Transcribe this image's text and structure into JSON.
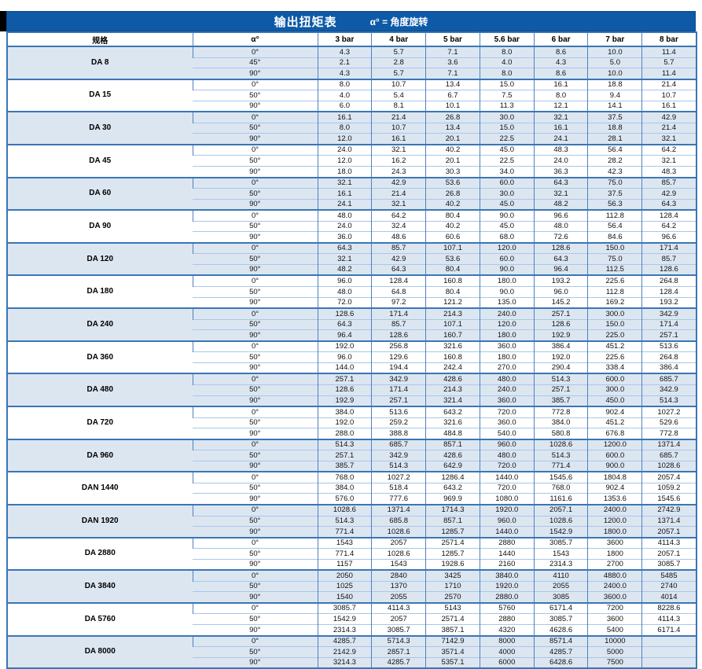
{
  "title": {
    "main": "输出扭矩表",
    "note": "α° =  角度旋转"
  },
  "colors": {
    "title_bar": "#0e5aa7",
    "border_thick": "#3a76b5",
    "border_thin": "#a9c7e7",
    "border_vertical": "#4f81bd",
    "group_shade": "#dce6f1"
  },
  "table": {
    "columns": [
      "规格",
      "α°",
      "3 bar",
      "4 bar",
      "5 bar",
      "5.6 bar",
      "6 bar",
      "7 bar",
      "8 bar"
    ],
    "groups": [
      {
        "spec": "DA 8",
        "rows": [
          {
            "angle": "0°",
            "values": [
              "4.3",
              "5.7",
              "7.1",
              "8.0",
              "8.6",
              "10.0",
              "11.4"
            ]
          },
          {
            "angle": "45°",
            "values": [
              "2.1",
              "2.8",
              "3.6",
              "4.0",
              "4.3",
              "5.0",
              "5.7"
            ]
          },
          {
            "angle": "90°",
            "values": [
              "4.3",
              "5.7",
              "7.1",
              "8.0",
              "8.6",
              "10.0",
              "11.4"
            ]
          }
        ]
      },
      {
        "spec": "DA 15",
        "rows": [
          {
            "angle": "0°",
            "values": [
              "8.0",
              "10.7",
              "13.4",
              "15.0",
              "16.1",
              "18.8",
              "21.4"
            ]
          },
          {
            "angle": "50°",
            "values": [
              "4.0",
              "5.4",
              "6.7",
              "7.5",
              "8.0",
              "9.4",
              "10.7"
            ]
          },
          {
            "angle": "90°",
            "values": [
              "6.0",
              "8.1",
              "10.1",
              "11.3",
              "12.1",
              "14.1",
              "16.1"
            ]
          }
        ]
      },
      {
        "spec": "DA 30",
        "rows": [
          {
            "angle": "0°",
            "values": [
              "16.1",
              "21.4",
              "26.8",
              "30.0",
              "32.1",
              "37.5",
              "42.9"
            ]
          },
          {
            "angle": "50°",
            "values": [
              "8.0",
              "10.7",
              "13.4",
              "15.0",
              "16.1",
              "18.8",
              "21.4"
            ]
          },
          {
            "angle": "90°",
            "values": [
              "12.0",
              "16.1",
              "20.1",
              "22.5",
              "24.1",
              "28.1",
              "32.1"
            ]
          }
        ]
      },
      {
        "spec": "DA 45",
        "rows": [
          {
            "angle": "0°",
            "values": [
              "24.0",
              "32.1",
              "40.2",
              "45.0",
              "48.3",
              "56.4",
              "64.2"
            ]
          },
          {
            "angle": "50°",
            "values": [
              "12.0",
              "16.2",
              "20.1",
              "22.5",
              "24.0",
              "28.2",
              "32.1"
            ]
          },
          {
            "angle": "90°",
            "values": [
              "18.0",
              "24.3",
              "30.3",
              "34.0",
              "36.3",
              "42.3",
              "48.3"
            ]
          }
        ]
      },
      {
        "spec": "DA 60",
        "rows": [
          {
            "angle": "0°",
            "values": [
              "32.1",
              "42.9",
              "53.6",
              "60.0",
              "64.3",
              "75.0",
              "85.7"
            ]
          },
          {
            "angle": "50°",
            "values": [
              "16.1",
              "21.4",
              "26.8",
              "30.0",
              "32.1",
              "37.5",
              "42.9"
            ]
          },
          {
            "angle": "90°",
            "values": [
              "24.1",
              "32.1",
              "40.2",
              "45.0",
              "48.2",
              "56.3",
              "64.3"
            ]
          }
        ]
      },
      {
        "spec": "DA 90",
        "rows": [
          {
            "angle": "0°",
            "values": [
              "48.0",
              "64.2",
              "80.4",
              "90.0",
              "96.6",
              "112.8",
              "128.4"
            ]
          },
          {
            "angle": "50°",
            "values": [
              "24.0",
              "32.4",
              "40.2",
              "45.0",
              "48.0",
              "56.4",
              "64.2"
            ]
          },
          {
            "angle": "90°",
            "values": [
              "36.0",
              "48.6",
              "60.6",
              "68.0",
              "72.6",
              "84.6",
              "96.6"
            ]
          }
        ]
      },
      {
        "spec": "DA 120",
        "rows": [
          {
            "angle": "0°",
            "values": [
              "64.3",
              "85.7",
              "107.1",
              "120.0",
              "128.6",
              "150.0",
              "171.4"
            ]
          },
          {
            "angle": "50°",
            "values": [
              "32.1",
              "42.9",
              "53.6",
              "60.0",
              "64.3",
              "75.0",
              "85.7"
            ]
          },
          {
            "angle": "90°",
            "values": [
              "48.2",
              "64.3",
              "80.4",
              "90.0",
              "96.4",
              "112.5",
              "128.6"
            ]
          }
        ]
      },
      {
        "spec": "DA 180",
        "rows": [
          {
            "angle": "0°",
            "values": [
              "96.0",
              "128.4",
              "160.8",
              "180.0",
              "193.2",
              "225.6",
              "264.8"
            ]
          },
          {
            "angle": "50°",
            "values": [
              "48.0",
              "64.8",
              "80.4",
              "90.0",
              "96.0",
              "112.8",
              "128.4"
            ]
          },
          {
            "angle": "90°",
            "values": [
              "72.0",
              "97.2",
              "121.2",
              "135.0",
              "145.2",
              "169.2",
              "193.2"
            ]
          }
        ]
      },
      {
        "spec": "DA 240",
        "rows": [
          {
            "angle": "0°",
            "values": [
              "128.6",
              "171.4",
              "214.3",
              "240.0",
              "257.1",
              "300.0",
              "342.9"
            ]
          },
          {
            "angle": "50°",
            "values": [
              "64.3",
              "85.7",
              "107.1",
              "120.0",
              "128.6",
              "150.0",
              "171.4"
            ]
          },
          {
            "angle": "90°",
            "values": [
              "96.4",
              "128.6",
              "160.7",
              "180.0",
              "192.9",
              "225.0",
              "257.1"
            ]
          }
        ]
      },
      {
        "spec": "DA 360",
        "rows": [
          {
            "angle": "0°",
            "values": [
              "192.0",
              "256.8",
              "321.6",
              "360.0",
              "386.4",
              "451.2",
              "513.6"
            ]
          },
          {
            "angle": "50°",
            "values": [
              "96.0",
              "129.6",
              "160.8",
              "180.0",
              "192.0",
              "225.6",
              "264.8"
            ]
          },
          {
            "angle": "90°",
            "values": [
              "144.0",
              "194.4",
              "242.4",
              "270.0",
              "290.4",
              "338.4",
              "386.4"
            ]
          }
        ]
      },
      {
        "spec": "DA 480",
        "rows": [
          {
            "angle": "0°",
            "values": [
              "257.1",
              "342.9",
              "428.6",
              "480.0",
              "514.3",
              "600.0",
              "685.7"
            ]
          },
          {
            "angle": "50°",
            "values": [
              "128.6",
              "171.4",
              "214.3",
              "240.0",
              "257.1",
              "300.0",
              "342.9"
            ]
          },
          {
            "angle": "90°",
            "values": [
              "192.9",
              "257.1",
              "321.4",
              "360.0",
              "385.7",
              "450.0",
              "514.3"
            ]
          }
        ]
      },
      {
        "spec": "DA 720",
        "rows": [
          {
            "angle": "0°",
            "values": [
              "384.0",
              "513.6",
              "643.2",
              "720.0",
              "772.8",
              "902.4",
              "1027.2"
            ]
          },
          {
            "angle": "50°",
            "values": [
              "192.0",
              "259.2",
              "321.6",
              "360.0",
              "384.0",
              "451.2",
              "529.6"
            ]
          },
          {
            "angle": "90°",
            "values": [
              "288.0",
              "388.8",
              "484.8",
              "540.0",
              "580.8",
              "676.8",
              "772.8"
            ]
          }
        ]
      },
      {
        "spec": "DA 960",
        "rows": [
          {
            "angle": "0°",
            "values": [
              "514.3",
              "685.7",
              "857.1",
              "960.0",
              "1028.6",
              "1200.0",
              "1371.4"
            ]
          },
          {
            "angle": "50°",
            "values": [
              "257.1",
              "342.9",
              "428.6",
              "480.0",
              "514.3",
              "600.0",
              "685.7"
            ]
          },
          {
            "angle": "90°",
            "values": [
              "385.7",
              "514.3",
              "642.9",
              "720.0",
              "771.4",
              "900.0",
              "1028.6"
            ]
          }
        ]
      },
      {
        "spec": "DAN 1440",
        "rows": [
          {
            "angle": "0°",
            "values": [
              "768.0",
              "1027.2",
              "1286.4",
              "1440.0",
              "1545.6",
              "1804.8",
              "2057.4"
            ]
          },
          {
            "angle": "50°",
            "values": [
              "384.0",
              "518.4",
              "643.2",
              "720.0",
              "768.0",
              "902.4",
              "1059.2"
            ]
          },
          {
            "angle": "90°",
            "values": [
              "576.0",
              "777.6",
              "969.9",
              "1080.0",
              "1161.6",
              "1353.6",
              "1545.6"
            ]
          }
        ]
      },
      {
        "spec": "DAN 1920",
        "rows": [
          {
            "angle": "0°",
            "values": [
              "1028.6",
              "1371.4",
              "1714.3",
              "1920.0",
              "2057.1",
              "2400.0",
              "2742.9"
            ]
          },
          {
            "angle": "50°",
            "values": [
              "514.3",
              "685.8",
              "857.1",
              "960.0",
              "1028.6",
              "1200.0",
              "1371.4"
            ]
          },
          {
            "angle": "90°",
            "values": [
              "771.4",
              "1028.6",
              "1285.7",
              "1440.0",
              "1542.9",
              "1800.0",
              "2057.1"
            ]
          }
        ]
      },
      {
        "spec": "DA 2880",
        "rows": [
          {
            "angle": "0°",
            "values": [
              "1543",
              "2057",
              "2571.4",
              "2880",
              "3085.7",
              "3600",
              "4114.3"
            ]
          },
          {
            "angle": "50°",
            "values": [
              "771.4",
              "1028.6",
              "1285.7",
              "1440",
              "1543",
              "1800",
              "2057.1"
            ]
          },
          {
            "angle": "90°",
            "values": [
              "1157",
              "1543",
              "1928.6",
              "2160",
              "2314.3",
              "2700",
              "3085.7"
            ]
          }
        ]
      },
      {
        "spec": "DA 3840",
        "rows": [
          {
            "angle": "0°",
            "values": [
              "2050",
              "2840",
              "3425",
              "3840.0",
              "4110",
              "4880.0",
              "5485"
            ]
          },
          {
            "angle": "50°",
            "values": [
              "1025",
              "1370",
              "1710",
              "1920.0",
              "2055",
              "2400.0",
              "2740"
            ]
          },
          {
            "angle": "90°",
            "values": [
              "1540",
              "2055",
              "2570",
              "2880.0",
              "3085",
              "3600.0",
              "4014"
            ]
          }
        ]
      },
      {
        "spec": "DA 5760",
        "rows": [
          {
            "angle": "0°",
            "values": [
              "3085.7",
              "4114.3",
              "5143",
              "5760",
              "6171.4",
              "7200",
              "8228.6"
            ]
          },
          {
            "angle": "50°",
            "values": [
              "1542.9",
              "2057",
              "2571.4",
              "2880",
              "3085.7",
              "3600",
              "4114.3"
            ]
          },
          {
            "angle": "90°",
            "values": [
              "2314.3",
              "3085.7",
              "3857.1",
              "4320",
              "4628.6",
              "5400",
              "6171.4"
            ]
          }
        ]
      },
      {
        "spec": "DA 8000",
        "rows": [
          {
            "angle": "0°",
            "values": [
              "4285.7",
              "5714.3",
              "7142.9",
              "8000",
              "8571.4",
              "10000",
              ""
            ]
          },
          {
            "angle": "50°",
            "values": [
              "2142.9",
              "2857.1",
              "3571.4",
              "4000",
              "4285.7",
              "5000",
              ""
            ]
          },
          {
            "angle": "90°",
            "values": [
              "3214.3",
              "4285.7",
              "5357.1",
              "6000",
              "6428.6",
              "7500",
              ""
            ]
          }
        ]
      }
    ]
  }
}
